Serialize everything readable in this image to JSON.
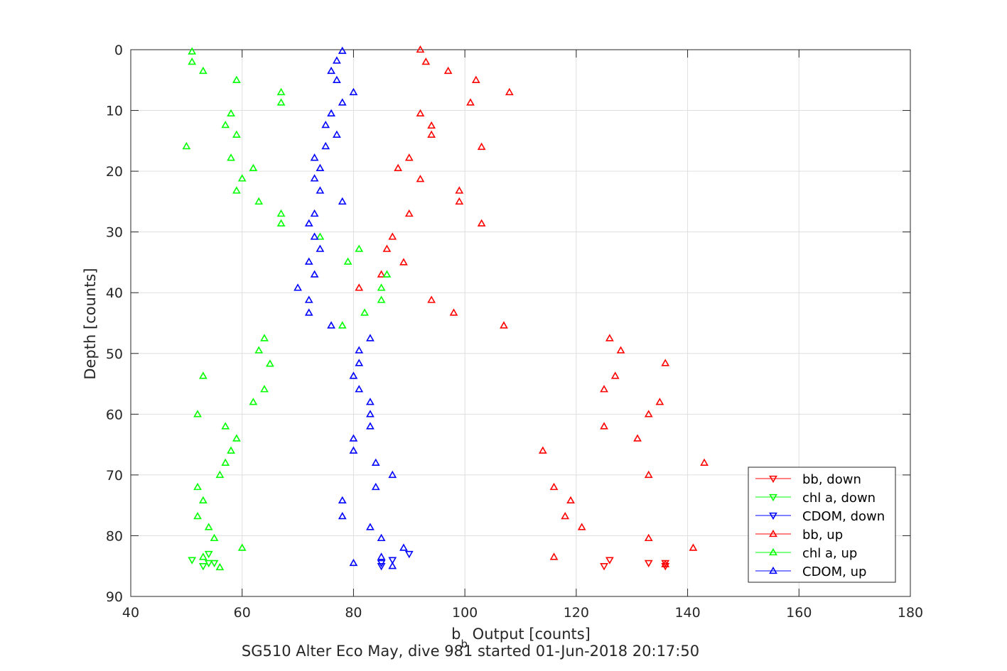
{
  "chart_data": {
    "type": "scatter",
    "title": "SG510 Alter Eco May, dive 981 started 01-Jun-2018 20:17:50",
    "xlabel_main": "b",
    "xlabel_sub": "b",
    "xlabel_rest": " Output [counts]",
    "ylabel": "Depth [counts]",
    "xlim": [
      40,
      180
    ],
    "ylim": [
      0,
      90
    ],
    "y_reversed": true,
    "grid": true,
    "legend_position": "bottom-right",
    "x_ticks": [
      40,
      60,
      80,
      100,
      120,
      140,
      160,
      180
    ],
    "y_ticks": [
      0,
      10,
      20,
      30,
      40,
      50,
      60,
      70,
      80,
      90
    ],
    "series": [
      {
        "name": "bb, down",
        "color": "#ff0000",
        "marker": "triangle-down",
        "points": [
          [
            125,
            85
          ],
          [
            126,
            84
          ],
          [
            133,
            84.5
          ],
          [
            136,
            85
          ],
          [
            136,
            84.5
          ]
        ]
      },
      {
        "name": "chl a, down",
        "color": "#00ff00",
        "marker": "triangle-down",
        "points": [
          [
            51,
            84
          ],
          [
            53,
            85
          ],
          [
            54,
            84.5
          ],
          [
            55,
            84.5
          ],
          [
            54,
            83
          ]
        ]
      },
      {
        "name": "CDOM, down",
        "color": "#0000ff",
        "marker": "triangle-down",
        "points": [
          [
            85,
            85
          ],
          [
            85,
            84.5
          ],
          [
            87,
            84
          ],
          [
            90,
            83
          ]
        ]
      },
      {
        "name": "bb, up",
        "color": "#ff0000",
        "marker": "triangle-up",
        "points": [
          [
            92,
            0
          ],
          [
            93,
            2
          ],
          [
            97,
            3.5
          ],
          [
            102,
            5
          ],
          [
            108,
            7
          ],
          [
            101,
            8.7
          ],
          [
            92,
            10.5
          ],
          [
            94,
            12.5
          ],
          [
            94,
            14
          ],
          [
            103,
            16
          ],
          [
            90,
            17.8
          ],
          [
            88,
            19.5
          ],
          [
            92,
            21.3
          ],
          [
            99,
            23.2
          ],
          [
            99,
            25
          ],
          [
            90,
            27
          ],
          [
            103,
            28.6
          ],
          [
            87,
            30.8
          ],
          [
            86,
            32.8
          ],
          [
            89,
            35
          ],
          [
            85,
            37
          ],
          [
            81,
            39.2
          ],
          [
            94,
            41.2
          ],
          [
            98,
            43.3
          ],
          [
            107,
            45.4
          ],
          [
            126,
            47.5
          ],
          [
            128,
            49.5
          ],
          [
            136,
            51.6
          ],
          [
            127,
            53.7
          ],
          [
            125,
            55.9
          ],
          [
            135,
            58
          ],
          [
            133,
            60
          ],
          [
            125,
            62
          ],
          [
            131,
            64
          ],
          [
            114,
            66
          ],
          [
            143,
            68
          ],
          [
            133,
            70
          ],
          [
            116,
            72
          ],
          [
            119,
            74.2
          ],
          [
            118,
            76.8
          ],
          [
            121,
            78.6
          ],
          [
            133,
            80.4
          ],
          [
            141,
            82
          ],
          [
            116,
            83.5
          ],
          [
            136,
            84.7
          ]
        ]
      },
      {
        "name": "chl a, up",
        "color": "#00ff00",
        "marker": "triangle-up",
        "points": [
          [
            51,
            0.3
          ],
          [
            51,
            2
          ],
          [
            53,
            3.5
          ],
          [
            59,
            5
          ],
          [
            67,
            7
          ],
          [
            67,
            8.7
          ],
          [
            58,
            10.5
          ],
          [
            57,
            12.4
          ],
          [
            59,
            14
          ],
          [
            50,
            15.9
          ],
          [
            58,
            17.8
          ],
          [
            62,
            19.5
          ],
          [
            60,
            21.2
          ],
          [
            59,
            23.2
          ],
          [
            63,
            25
          ],
          [
            67,
            27
          ],
          [
            67,
            28.6
          ],
          [
            74,
            30.8
          ],
          [
            81,
            32.8
          ],
          [
            79,
            34.9
          ],
          [
            86,
            37
          ],
          [
            85,
            39.2
          ],
          [
            85,
            41.2
          ],
          [
            82,
            43.3
          ],
          [
            78,
            45.4
          ],
          [
            64,
            47.5
          ],
          [
            63,
            49.5
          ],
          [
            65,
            51.7
          ],
          [
            53,
            53.7
          ],
          [
            64,
            55.9
          ],
          [
            62,
            58
          ],
          [
            52,
            60
          ],
          [
            57,
            62
          ],
          [
            59,
            64
          ],
          [
            58,
            66
          ],
          [
            57,
            68
          ],
          [
            56,
            70
          ],
          [
            52,
            72
          ],
          [
            53,
            74.2
          ],
          [
            52,
            76.8
          ],
          [
            54,
            78.6
          ],
          [
            55,
            80.4
          ],
          [
            60,
            82
          ],
          [
            53,
            83.5
          ],
          [
            56,
            85.2
          ]
        ]
      },
      {
        "name": "CDOM, up",
        "color": "#0000ff",
        "marker": "triangle-up",
        "points": [
          [
            78,
            0.2
          ],
          [
            77,
            1.8
          ],
          [
            76,
            3.5
          ],
          [
            77,
            5
          ],
          [
            80,
            7
          ],
          [
            78,
            8.7
          ],
          [
            76,
            10.5
          ],
          [
            75,
            12.4
          ],
          [
            77,
            14
          ],
          [
            75,
            15.9
          ],
          [
            73,
            17.8
          ],
          [
            74,
            19.5
          ],
          [
            73,
            21.2
          ],
          [
            74,
            23.2
          ],
          [
            78,
            25
          ],
          [
            73,
            27
          ],
          [
            72,
            28.6
          ],
          [
            73,
            30.8
          ],
          [
            74,
            32.8
          ],
          [
            72,
            34.9
          ],
          [
            73,
            37
          ],
          [
            70,
            39.2
          ],
          [
            72,
            41.2
          ],
          [
            72,
            43.3
          ],
          [
            76,
            45.4
          ],
          [
            83,
            47.5
          ],
          [
            81,
            49.5
          ],
          [
            81,
            51.6
          ],
          [
            80,
            53.7
          ],
          [
            81,
            55.9
          ],
          [
            83,
            58
          ],
          [
            83,
            60
          ],
          [
            83,
            62
          ],
          [
            80,
            64
          ],
          [
            80,
            66
          ],
          [
            84,
            68
          ],
          [
            87,
            70
          ],
          [
            84,
            72
          ],
          [
            78,
            74.2
          ],
          [
            78,
            76.8
          ],
          [
            83,
            78.6
          ],
          [
            85,
            80.4
          ],
          [
            89,
            82
          ],
          [
            85,
            83.5
          ],
          [
            80,
            84.5
          ],
          [
            87,
            85
          ]
        ]
      }
    ]
  }
}
